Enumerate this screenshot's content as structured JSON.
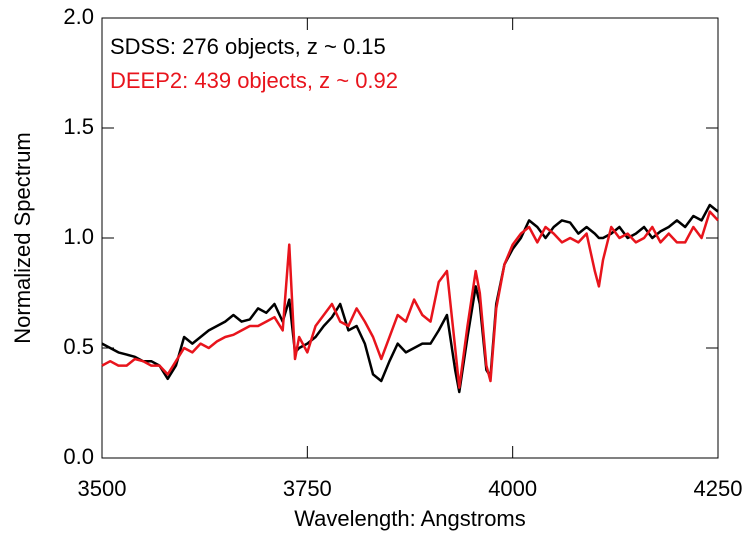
{
  "chart_data": {
    "type": "line",
    "xlabel": "Wavelength: Angstroms",
    "ylabel": "Normalized Spectrum",
    "x": [
      3500,
      3510,
      3520,
      3530,
      3540,
      3550,
      3560,
      3570,
      3580,
      3590,
      3600,
      3610,
      3620,
      3630,
      3640,
      3650,
      3660,
      3670,
      3680,
      3690,
      3700,
      3710,
      3720,
      3728,
      3735,
      3740,
      3750,
      3760,
      3770,
      3780,
      3790,
      3800,
      3810,
      3820,
      3830,
      3840,
      3850,
      3860,
      3870,
      3880,
      3890,
      3900,
      3910,
      3920,
      3930,
      3935,
      3945,
      3955,
      3960,
      3968,
      3973,
      3980,
      3990,
      4000,
      4010,
      4020,
      4030,
      4040,
      4050,
      4060,
      4070,
      4080,
      4090,
      4100,
      4105,
      4110,
      4120,
      4130,
      4140,
      4150,
      4160,
      4170,
      4180,
      4190,
      4200,
      4210,
      4220,
      4230,
      4240,
      4250
    ],
    "series": [
      {
        "name": "SDSS: 276 objects, z ~ 0.15",
        "color": "#000000",
        "values": [
          0.52,
          0.5,
          0.48,
          0.47,
          0.46,
          0.44,
          0.44,
          0.42,
          0.36,
          0.42,
          0.55,
          0.52,
          0.55,
          0.58,
          0.6,
          0.62,
          0.65,
          0.62,
          0.63,
          0.68,
          0.66,
          0.7,
          0.62,
          0.72,
          0.48,
          0.5,
          0.52,
          0.55,
          0.6,
          0.64,
          0.7,
          0.58,
          0.6,
          0.52,
          0.38,
          0.35,
          0.44,
          0.52,
          0.48,
          0.5,
          0.52,
          0.52,
          0.58,
          0.65,
          0.4,
          0.3,
          0.55,
          0.78,
          0.7,
          0.4,
          0.37,
          0.7,
          0.88,
          0.95,
          1.0,
          1.08,
          1.05,
          1.0,
          1.05,
          1.08,
          1.07,
          1.02,
          1.05,
          1.02,
          1.0,
          1.0,
          1.02,
          1.05,
          1.0,
          1.02,
          1.05,
          1.0,
          1.03,
          1.05,
          1.08,
          1.05,
          1.1,
          1.08,
          1.15,
          1.12
        ]
      },
      {
        "name": "DEEP2: 439 objects, z ~ 0.92",
        "color": "#e8141c",
        "values": [
          0.42,
          0.44,
          0.42,
          0.42,
          0.45,
          0.44,
          0.42,
          0.42,
          0.38,
          0.44,
          0.5,
          0.48,
          0.52,
          0.5,
          0.53,
          0.55,
          0.56,
          0.58,
          0.6,
          0.6,
          0.62,
          0.64,
          0.58,
          0.97,
          0.45,
          0.55,
          0.48,
          0.6,
          0.65,
          0.7,
          0.62,
          0.6,
          0.68,
          0.62,
          0.55,
          0.45,
          0.55,
          0.65,
          0.62,
          0.72,
          0.65,
          0.62,
          0.8,
          0.85,
          0.5,
          0.32,
          0.6,
          0.85,
          0.75,
          0.42,
          0.35,
          0.68,
          0.88,
          0.97,
          1.02,
          1.05,
          0.98,
          1.05,
          1.02,
          0.98,
          1.0,
          0.98,
          1.02,
          0.85,
          0.78,
          0.9,
          1.05,
          1.0,
          1.02,
          0.98,
          1.0,
          1.05,
          0.98,
          1.02,
          0.98,
          0.98,
          1.05,
          1.0,
          1.12,
          1.08
        ]
      }
    ],
    "xlim": [
      3500,
      4250
    ],
    "xticks": [
      3500,
      3750,
      4000,
      4250
    ],
    "ylim": [
      0,
      2
    ],
    "yticks": [
      {
        "value": 0,
        "label": "0.0"
      },
      {
        "value": 0.5,
        "label": "0.5"
      },
      {
        "value": 1,
        "label": "1.0"
      },
      {
        "value": 1.5,
        "label": "1.5"
      },
      {
        "value": 2,
        "label": "2.0"
      }
    ],
    "grid": false,
    "legend": "upper left"
  }
}
